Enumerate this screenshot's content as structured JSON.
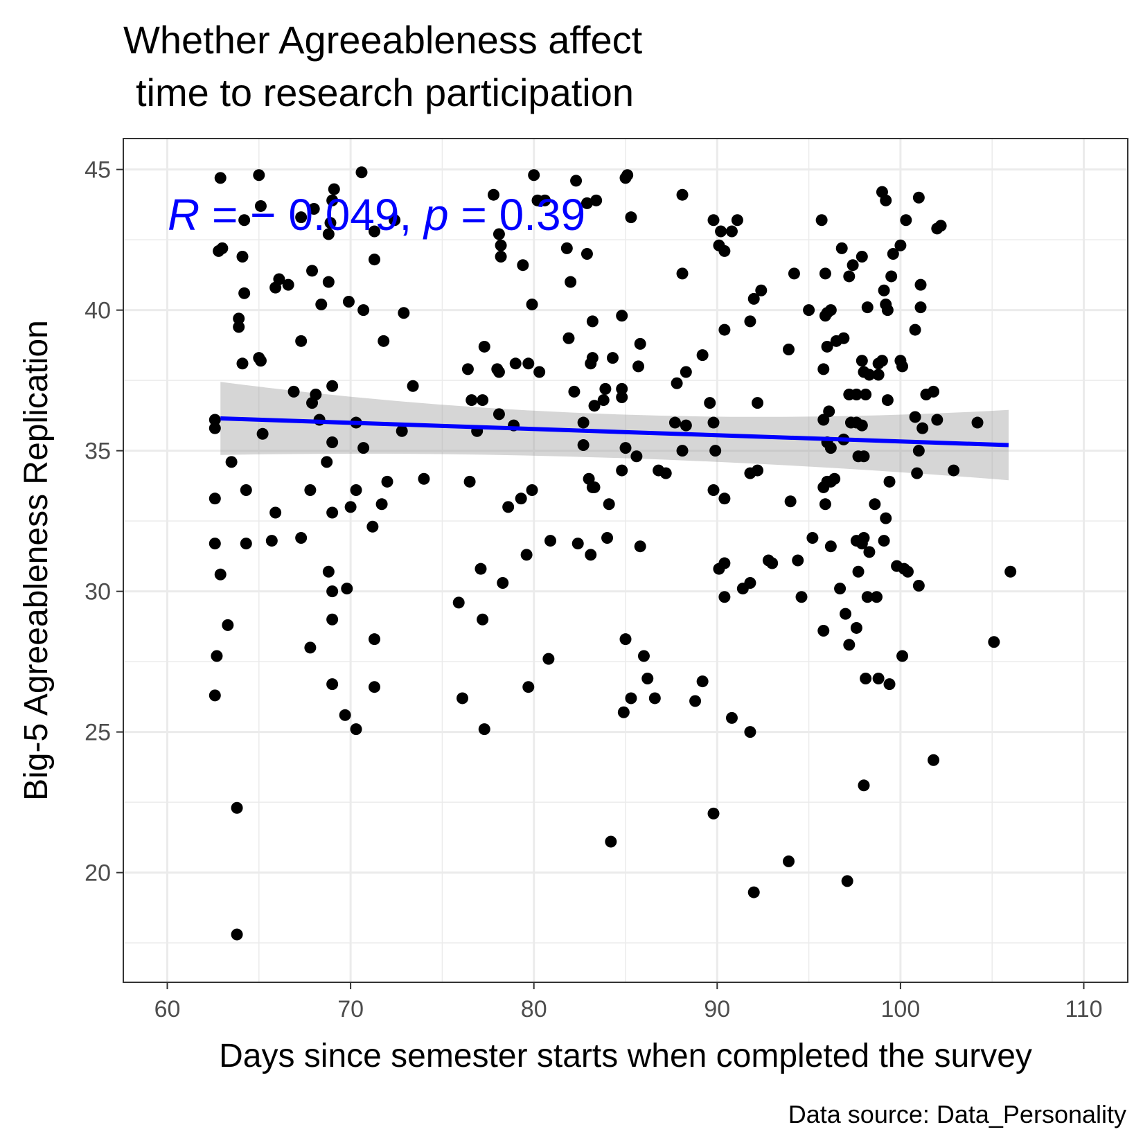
{
  "chart_data": {
    "type": "scatter",
    "title_line1": "Whether Agreeableness affect",
    "title_line2": "time to research participation",
    "xlabel": "Days since semester starts when completed the survey",
    "ylabel": "Big-5 Agreeableness Replication",
    "caption": "Data source: Data_Personality",
    "annotation": {
      "r_symbol": "R",
      "r_text": " = − 0.049, ",
      "p_symbol": "p",
      "p_text": " = 0.39",
      "color": "#0000ff"
    },
    "xlim": [
      57.6,
      112.4
    ],
    "ylim": [
      16.1,
      46.1
    ],
    "x_ticks": [
      60,
      70,
      80,
      90,
      100,
      110
    ],
    "y_ticks": [
      20,
      25,
      30,
      35,
      40,
      45
    ],
    "grid": true,
    "point_color": "#000000",
    "regression": {
      "x": [
        62.9,
        105.9
      ],
      "y": [
        36.15,
        35.2
      ],
      "ci_lower": [
        34.85,
        33.95
      ],
      "ci_upper": [
        37.45,
        36.45
      ],
      "ci_mid_lower": 35.0,
      "ci_mid_upper": 35.75,
      "ci_mid_x": 84,
      "color": "#0000ff",
      "ci_color": "#999999"
    },
    "points": [
      [
        62.9,
        44.7
      ],
      [
        65.0,
        44.8
      ],
      [
        70.6,
        44.9
      ],
      [
        80.0,
        44.8
      ],
      [
        82.3,
        44.6
      ],
      [
        85.0,
        44.7
      ],
      [
        85.1,
        44.8
      ],
      [
        63.0,
        42.2
      ],
      [
        62.8,
        42.1
      ],
      [
        64.2,
        43.2
      ],
      [
        65.1,
        43.7
      ],
      [
        67.3,
        43.3
      ],
      [
        68.0,
        43.6
      ],
      [
        68.8,
        42.7
      ],
      [
        68.9,
        43.1
      ],
      [
        69.1,
        44.3
      ],
      [
        69.0,
        43.9
      ],
      [
        71.3,
        42.8
      ],
      [
        72.4,
        43.2
      ],
      [
        77.8,
        44.1
      ],
      [
        78.1,
        42.7
      ],
      [
        78.2,
        42.3
      ],
      [
        80.2,
        43.9
      ],
      [
        80.6,
        43.9
      ],
      [
        82.9,
        43.8
      ],
      [
        83.4,
        43.9
      ],
      [
        85.3,
        43.3
      ],
      [
        88.1,
        44.1
      ],
      [
        89.8,
        43.2
      ],
      [
        90.2,
        42.8
      ],
      [
        90.8,
        42.8
      ],
      [
        91.1,
        43.2
      ],
      [
        95.7,
        43.2
      ],
      [
        99.0,
        44.2
      ],
      [
        99.2,
        43.9
      ],
      [
        101.0,
        44.0
      ],
      [
        100.3,
        43.2
      ],
      [
        102.0,
        42.9
      ],
      [
        102.2,
        43.0
      ],
      [
        64.1,
        41.9
      ],
      [
        66.1,
        41.1
      ],
      [
        65.9,
        40.8
      ],
      [
        66.6,
        40.9
      ],
      [
        67.9,
        41.4
      ],
      [
        64.2,
        40.6
      ],
      [
        68.8,
        41.0
      ],
      [
        71.3,
        41.8
      ],
      [
        78.2,
        41.9
      ],
      [
        79.4,
        41.6
      ],
      [
        81.8,
        42.2
      ],
      [
        82.0,
        41.0
      ],
      [
        82.9,
        42.0
      ],
      [
        88.1,
        41.3
      ],
      [
        90.1,
        42.3
      ],
      [
        90.4,
        42.1
      ],
      [
        94.2,
        41.3
      ],
      [
        95.9,
        41.3
      ],
      [
        96.8,
        42.2
      ],
      [
        97.2,
        41.2
      ],
      [
        97.4,
        41.6
      ],
      [
        97.9,
        41.9
      ],
      [
        99.6,
        42.0
      ],
      [
        100.0,
        42.3
      ],
      [
        99.5,
        41.2
      ],
      [
        101.1,
        40.9
      ],
      [
        99.1,
        40.7
      ],
      [
        63.9,
        39.7
      ],
      [
        63.9,
        39.4
      ],
      [
        68.4,
        40.2
      ],
      [
        69.9,
        40.3
      ],
      [
        70.7,
        40.0
      ],
      [
        72.9,
        39.9
      ],
      [
        79.9,
        40.2
      ],
      [
        83.2,
        39.6
      ],
      [
        84.8,
        39.8
      ],
      [
        90.4,
        39.3
      ],
      [
        91.8,
        39.6
      ],
      [
        92.0,
        40.4
      ],
      [
        92.4,
        40.7
      ],
      [
        95.0,
        40.0
      ],
      [
        95.9,
        39.8
      ],
      [
        96.0,
        39.9
      ],
      [
        96.2,
        40.0
      ],
      [
        98.2,
        40.1
      ],
      [
        99.2,
        40.2
      ],
      [
        99.3,
        40.0
      ],
      [
        101.1,
        40.1
      ],
      [
        100.8,
        39.3
      ],
      [
        64.1,
        38.1
      ],
      [
        65.0,
        38.3
      ],
      [
        65.1,
        38.2
      ],
      [
        67.3,
        38.9
      ],
      [
        71.8,
        38.9
      ],
      [
        76.4,
        37.9
      ],
      [
        77.3,
        38.7
      ],
      [
        78.0,
        37.9
      ],
      [
        78.1,
        37.8
      ],
      [
        79.0,
        38.1
      ],
      [
        79.7,
        38.1
      ],
      [
        80.3,
        37.8
      ],
      [
        81.9,
        39.0
      ],
      [
        83.1,
        38.1
      ],
      [
        83.2,
        38.3
      ],
      [
        84.3,
        38.3
      ],
      [
        85.8,
        38.8
      ],
      [
        85.7,
        38.0
      ],
      [
        88.3,
        37.8
      ],
      [
        89.2,
        38.4
      ],
      [
        93.9,
        38.6
      ],
      [
        95.8,
        37.9
      ],
      [
        96.0,
        38.7
      ],
      [
        96.5,
        38.9
      ],
      [
        96.9,
        39.0
      ],
      [
        97.9,
        38.2
      ],
      [
        98.0,
        37.8
      ],
      [
        98.3,
        37.7
      ],
      [
        98.8,
        38.1
      ],
      [
        99.0,
        38.2
      ],
      [
        98.8,
        37.7
      ],
      [
        100.0,
        38.2
      ],
      [
        100.1,
        38.0
      ],
      [
        62.6,
        35.8
      ],
      [
        62.6,
        36.1
      ],
      [
        65.2,
        35.6
      ],
      [
        66.9,
        37.1
      ],
      [
        67.9,
        36.7
      ],
      [
        68.1,
        37.0
      ],
      [
        68.3,
        36.1
      ],
      [
        69.0,
        37.3
      ],
      [
        69.0,
        35.3
      ],
      [
        70.3,
        36.0
      ],
      [
        70.7,
        35.1
      ],
      [
        72.8,
        35.7
      ],
      [
        73.4,
        37.3
      ],
      [
        76.6,
        36.8
      ],
      [
        76.9,
        35.7
      ],
      [
        77.2,
        36.8
      ],
      [
        78.1,
        36.3
      ],
      [
        78.9,
        35.9
      ],
      [
        82.2,
        37.1
      ],
      [
        82.7,
        36.0
      ],
      [
        82.7,
        35.2
      ],
      [
        83.3,
        36.6
      ],
      [
        83.8,
        36.8
      ],
      [
        83.9,
        37.2
      ],
      [
        84.8,
        37.2
      ],
      [
        84.8,
        36.9
      ],
      [
        85.0,
        35.1
      ],
      [
        87.8,
        37.4
      ],
      [
        87.7,
        36.0
      ],
      [
        88.3,
        35.9
      ],
      [
        89.6,
        36.7
      ],
      [
        89.8,
        36.0
      ],
      [
        89.9,
        35.0
      ],
      [
        92.2,
        36.7
      ],
      [
        95.8,
        36.1
      ],
      [
        96.0,
        35.3
      ],
      [
        96.1,
        36.4
      ],
      [
        96.2,
        35.1
      ],
      [
        96.9,
        35.4
      ],
      [
        97.2,
        37.0
      ],
      [
        97.3,
        36.0
      ],
      [
        97.6,
        36.0
      ],
      [
        97.6,
        37.0
      ],
      [
        97.7,
        34.8
      ],
      [
        97.9,
        35.9
      ],
      [
        98.0,
        34.8
      ],
      [
        98.1,
        37.0
      ],
      [
        99.3,
        36.8
      ],
      [
        100.8,
        36.2
      ],
      [
        101.0,
        35.0
      ],
      [
        101.2,
        35.8
      ],
      [
        101.8,
        37.1
      ],
      [
        101.4,
        37.0
      ],
      [
        102.0,
        36.1
      ],
      [
        104.2,
        36.0
      ],
      [
        63.5,
        34.6
      ],
      [
        64.3,
        33.6
      ],
      [
        67.8,
        33.6
      ],
      [
        68.7,
        34.6
      ],
      [
        70.3,
        33.6
      ],
      [
        72.0,
        33.9
      ],
      [
        74.0,
        34.0
      ],
      [
        76.5,
        33.9
      ],
      [
        79.3,
        33.3
      ],
      [
        79.9,
        33.6
      ],
      [
        83.0,
        34.0
      ],
      [
        83.2,
        33.7
      ],
      [
        83.3,
        33.7
      ],
      [
        84.1,
        33.1
      ],
      [
        84.8,
        34.3
      ],
      [
        85.6,
        34.8
      ],
      [
        86.8,
        34.3
      ],
      [
        87.2,
        34.2
      ],
      [
        88.1,
        35.0
      ],
      [
        89.8,
        33.6
      ],
      [
        90.4,
        33.3
      ],
      [
        91.8,
        34.2
      ],
      [
        92.2,
        34.3
      ],
      [
        94.0,
        33.2
      ],
      [
        95.8,
        33.7
      ],
      [
        95.9,
        33.1
      ],
      [
        96.0,
        33.9
      ],
      [
        96.4,
        34.0
      ],
      [
        96.2,
        33.9
      ],
      [
        100.9,
        34.2
      ],
      [
        102.9,
        34.3
      ],
      [
        99.4,
        33.9
      ],
      [
        62.6,
        33.3
      ],
      [
        65.9,
        32.8
      ],
      [
        69.0,
        32.8
      ],
      [
        70.0,
        33.0
      ],
      [
        71.7,
        33.1
      ],
      [
        78.6,
        33.0
      ],
      [
        80.9,
        31.8
      ],
      [
        82.4,
        31.7
      ],
      [
        83.1,
        31.3
      ],
      [
        84.0,
        31.9
      ],
      [
        85.8,
        31.6
      ],
      [
        91.8,
        30.3
      ],
      [
        93.0,
        31.0
      ],
      [
        92.8,
        31.1
      ],
      [
        94.4,
        31.1
      ],
      [
        95.2,
        31.9
      ],
      [
        96.2,
        31.6
      ],
      [
        97.6,
        31.8
      ],
      [
        97.9,
        31.7
      ],
      [
        98.0,
        31.9
      ],
      [
        98.3,
        31.4
      ],
      [
        98.6,
        33.1
      ],
      [
        99.1,
        31.8
      ],
      [
        99.2,
        32.6
      ],
      [
        62.6,
        31.7
      ],
      [
        64.3,
        31.7
      ],
      [
        65.7,
        31.8
      ],
      [
        67.3,
        31.9
      ],
      [
        71.2,
        32.3
      ],
      [
        79.6,
        31.3
      ],
      [
        62.9,
        30.6
      ],
      [
        68.8,
        30.7
      ],
      [
        69.0,
        30.0
      ],
      [
        69.8,
        30.1
      ],
      [
        77.1,
        30.8
      ],
      [
        78.3,
        30.3
      ],
      [
        90.1,
        30.8
      ],
      [
        90.4,
        31.0
      ],
      [
        90.4,
        29.8
      ],
      [
        91.4,
        30.1
      ],
      [
        94.6,
        29.8
      ],
      [
        96.7,
        30.1
      ],
      [
        97.7,
        30.7
      ],
      [
        98.2,
        29.8
      ],
      [
        98.7,
        29.8
      ],
      [
        99.8,
        30.9
      ],
      [
        100.2,
        30.8
      ],
      [
        100.4,
        30.7
      ],
      [
        101.0,
        30.2
      ],
      [
        106.0,
        30.7
      ],
      [
        63.3,
        28.8
      ],
      [
        62.7,
        27.7
      ],
      [
        67.8,
        28.0
      ],
      [
        69.0,
        29.0
      ],
      [
        71.3,
        28.3
      ],
      [
        75.9,
        29.6
      ],
      [
        77.2,
        29.0
      ],
      [
        85.0,
        28.3
      ],
      [
        86.0,
        27.7
      ],
      [
        95.8,
        28.6
      ],
      [
        97.0,
        29.2
      ],
      [
        97.2,
        28.1
      ],
      [
        97.6,
        28.7
      ],
      [
        100.1,
        27.7
      ],
      [
        105.1,
        28.2
      ],
      [
        80.8,
        27.6
      ],
      [
        62.6,
        26.3
      ],
      [
        69.0,
        26.7
      ],
      [
        71.3,
        26.6
      ],
      [
        76.1,
        26.2
      ],
      [
        79.7,
        26.6
      ],
      [
        85.3,
        26.2
      ],
      [
        86.2,
        26.9
      ],
      [
        86.6,
        26.2
      ],
      [
        88.8,
        26.1
      ],
      [
        89.2,
        26.8
      ],
      [
        98.1,
        26.9
      ],
      [
        98.8,
        26.9
      ],
      [
        99.4,
        26.7
      ],
      [
        69.7,
        25.6
      ],
      [
        70.3,
        25.1
      ],
      [
        77.3,
        25.1
      ],
      [
        84.9,
        25.7
      ],
      [
        90.8,
        25.5
      ],
      [
        91.8,
        25.0
      ],
      [
        101.8,
        24.0
      ],
      [
        98.0,
        23.1
      ],
      [
        63.8,
        22.3
      ],
      [
        89.8,
        22.1
      ],
      [
        84.2,
        21.1
      ],
      [
        93.9,
        20.4
      ],
      [
        92.0,
        19.3
      ],
      [
        97.1,
        19.7
      ],
      [
        63.8,
        17.8
      ]
    ]
  }
}
